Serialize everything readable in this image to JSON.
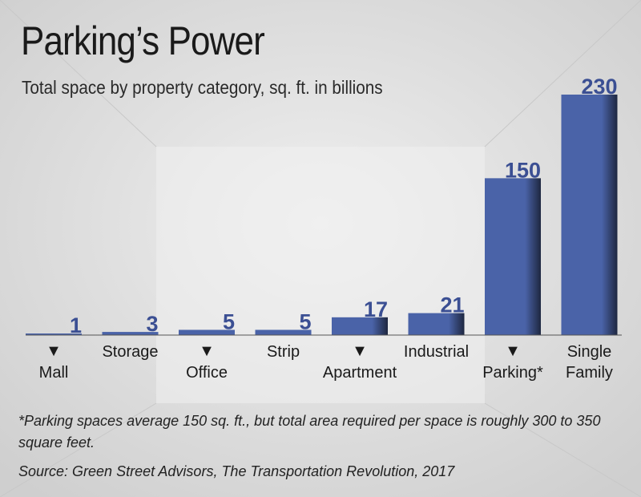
{
  "title": "Parking’s Power",
  "subtitle": "Total space by property category, sq. ft. in billions",
  "chart_data": {
    "type": "bar",
    "categories": [
      "Mall",
      "Storage",
      "Office",
      "Strip",
      "Apartment",
      "Industrial",
      "Parking*",
      "Single Family"
    ],
    "values": [
      1,
      3,
      5,
      5,
      17,
      21,
      150,
      230
    ],
    "value_labels": [
      "1",
      "3",
      "5",
      "5",
      "17",
      "21",
      "150",
      "230"
    ],
    "label_position": [
      "bottom",
      "top",
      "bottom",
      "top",
      "bottom",
      "top",
      "bottom",
      "top"
    ],
    "ylim": [
      0,
      240
    ],
    "grid": false,
    "bar_color": "#4a63a8",
    "marker": "▼"
  },
  "footnote": "*Parking spaces average 150 sq. ft., but total area required per space is roughly 300 to 350 square feet.",
  "source": "Source: Green Street Advisors, The Transportation Revolution, 2017"
}
